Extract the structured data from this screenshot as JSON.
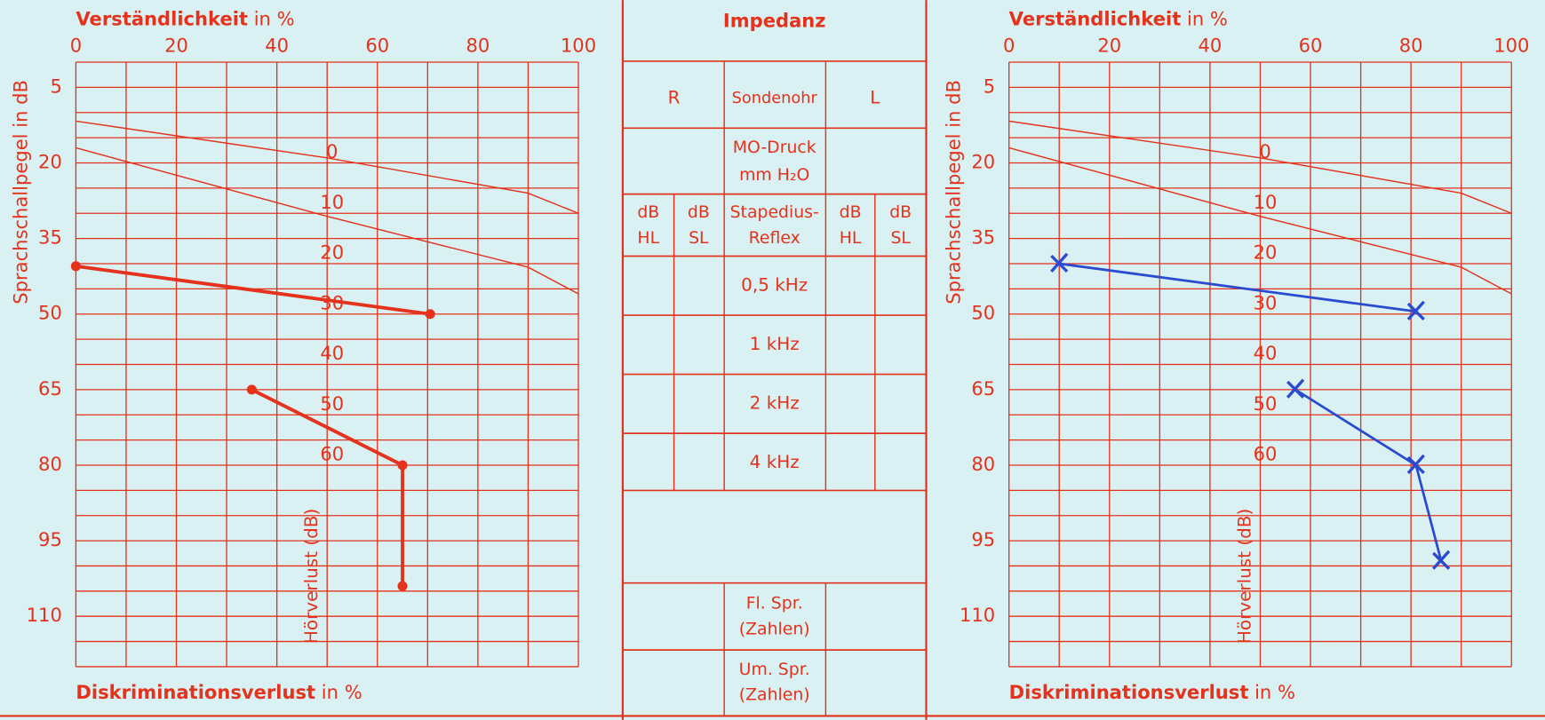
{
  "chart_data": [
    {
      "type": "line",
      "x_label": "Verständlichkeit",
      "x_label_unit": "in %",
      "y_label": "Sprachschallpegel in dB",
      "bottom_label": "Diskriminationsverlust",
      "bottom_label_unit": "in %",
      "curve_label": "Hörverlust (dB)",
      "xlim": [
        0,
        100
      ],
      "ylim": [
        0,
        120
      ],
      "y_inverted": true,
      "xticks": [
        0,
        20,
        40,
        60,
        80,
        100
      ],
      "yticks": [
        5,
        20,
        35,
        50,
        65,
        80,
        95,
        110
      ],
      "xgrid": [
        0,
        10,
        20,
        30,
        40,
        50,
        60,
        70,
        80,
        90,
        100
      ],
      "ygrid": [
        0,
        5,
        10,
        15,
        20,
        25,
        30,
        35,
        40,
        45,
        50,
        55,
        60,
        65,
        70,
        75,
        80,
        85,
        90,
        95,
        100,
        105,
        110,
        115,
        120
      ],
      "grid_color": "#e4321c",
      "reference_curves": [
        {
          "x": [
            0,
            50,
            90,
            100
          ],
          "values": [
            11.7,
            19,
            26,
            30
          ]
        },
        {
          "x": [
            0,
            50,
            90,
            100
          ],
          "values": [
            17,
            30.6,
            40.7,
            46
          ]
        }
      ],
      "hearing_loss_ticks": [
        0,
        10,
        20,
        30,
        40,
        50,
        60
      ],
      "series": [
        {
          "color": "#e4321c",
          "marker": "o",
          "x": [
            0,
            70.5
          ],
          "values": [
            40.5,
            50
          ]
        },
        {
          "color": "#e4321c",
          "marker": "o",
          "x": [
            35,
            65,
            65
          ],
          "values": [
            65,
            80,
            104
          ]
        }
      ]
    },
    {
      "type": "line",
      "x_label": "Verständlichkeit",
      "x_label_unit": "in %",
      "y_label": "Sprachschallpegel in dB",
      "bottom_label": "Diskriminationsverlust",
      "bottom_label_unit": "in %",
      "curve_label": "Hörverlust (dB)",
      "xlim": [
        0,
        100
      ],
      "ylim": [
        0,
        120
      ],
      "y_inverted": true,
      "xticks": [
        0,
        20,
        40,
        60,
        80,
        100
      ],
      "yticks": [
        5,
        20,
        35,
        50,
        65,
        80,
        95,
        110
      ],
      "xgrid": [
        0,
        10,
        20,
        30,
        40,
        50,
        60,
        70,
        80,
        90,
        100
      ],
      "ygrid": [
        0,
        5,
        10,
        15,
        20,
        25,
        30,
        35,
        40,
        45,
        50,
        55,
        60,
        65,
        70,
        75,
        80,
        85,
        90,
        95,
        100,
        105,
        110,
        115,
        120
      ],
      "grid_color": "#e4321c",
      "reference_curves": [
        {
          "x": [
            0,
            50,
            90,
            100
          ],
          "values": [
            11.7,
            19,
            26,
            30
          ]
        },
        {
          "x": [
            0,
            50,
            90,
            100
          ],
          "values": [
            17,
            30.6,
            40.7,
            46
          ]
        }
      ],
      "hearing_loss_ticks": [
        0,
        10,
        20,
        30,
        40,
        50,
        60
      ],
      "series": [
        {
          "color": "#2a4bd0",
          "marker": "x",
          "x": [
            10,
            81
          ],
          "values": [
            40,
            49.5
          ]
        },
        {
          "color": "#2a4bd0",
          "marker": "x",
          "x": [
            57,
            81,
            86
          ],
          "values": [
            65,
            80,
            99
          ]
        }
      ]
    }
  ],
  "impedance": {
    "title": "Impedanz",
    "probe_row": [
      "R",
      "Sondenohr",
      "L"
    ],
    "pressure": [
      "MO-Druck",
      "mm H₂O"
    ],
    "reflex_header": [
      [
        "dB",
        "HL"
      ],
      [
        "dB",
        "SL"
      ],
      [
        "Stapedius-",
        "Reflex"
      ],
      [
        "dB",
        "HL"
      ],
      [
        "dB",
        "SL"
      ]
    ],
    "frequencies": [
      "0,5 kHz",
      "1 kHz",
      "2 kHz",
      "4 kHz"
    ],
    "speech_rows": [
      [
        "Fl. Spr.",
        "(Zahlen)"
      ],
      [
        "Um. Spr.",
        "(Zahlen)"
      ]
    ]
  }
}
